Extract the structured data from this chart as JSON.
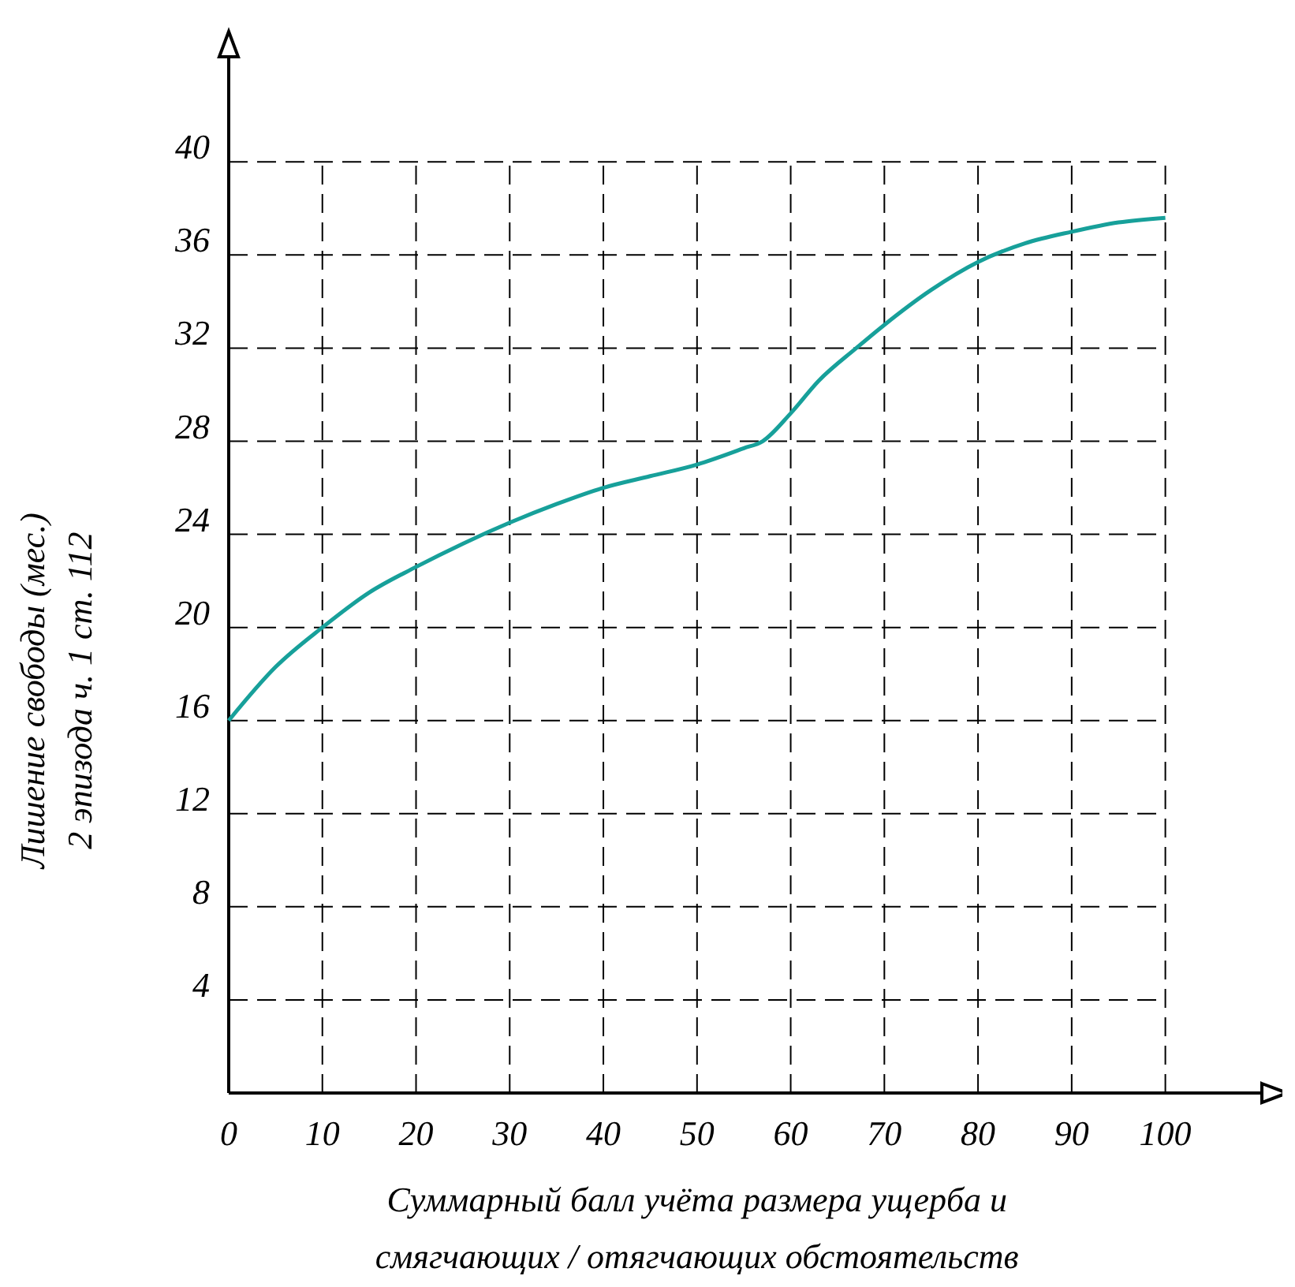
{
  "chart_data": {
    "type": "line",
    "xlabel": "Суммарный балл учёта размера ущерба и\nсмягчающих / отягчающих обстоятельств",
    "ylabel": "Лишение свободы (мес.)\n2 эпизода ч. 1 ст. 112",
    "x": [
      0,
      5,
      10,
      15,
      20,
      25,
      30,
      35,
      40,
      45,
      50,
      55,
      57,
      60,
      63,
      67,
      70,
      75,
      80,
      85,
      90,
      95,
      100
    ],
    "series": [
      {
        "color": "#17a09a",
        "values": [
          16,
          18.3,
          20,
          21.5,
          22.6,
          23.6,
          24.5,
          25.3,
          26,
          26.5,
          27,
          27.7,
          28,
          29.2,
          30.6,
          32,
          33,
          34.5,
          35.7,
          36.5,
          37,
          37.4,
          37.6
        ]
      }
    ],
    "xlim": [
      0,
      113
    ],
    "ylim": [
      0,
      45.6
    ],
    "xticks": [
      0,
      10,
      20,
      30,
      40,
      50,
      60,
      70,
      80,
      90,
      100
    ],
    "yticks": [
      4,
      8,
      12,
      16,
      20,
      24,
      28,
      32,
      36,
      40
    ],
    "grid": true,
    "marker": "none",
    "line_style": "solid"
  }
}
